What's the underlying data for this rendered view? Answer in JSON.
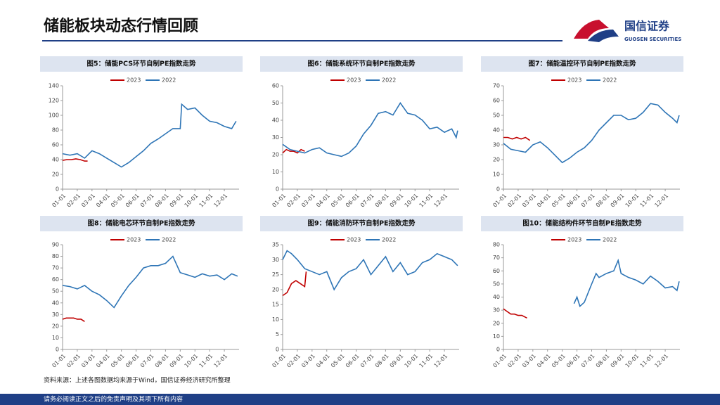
{
  "header": {
    "title": "储能板块动态行情回顾",
    "logo_cn": "国信证券",
    "logo_en": "GUOSEN SECURITIES"
  },
  "source": "资料来源：上述各图数据均来源于Wind，国信证券经济研究所整理",
  "footer": "请务必阅读正文之后的免责声明及其项下所有内容",
  "chart_data": [
    {
      "type": "line",
      "title": "图5：储能PCS环节自制PE指数走势",
      "xlim": [
        0,
        12
      ],
      "xticks": [
        {
          "value": 0,
          "label": "01-01"
        },
        {
          "value": 1,
          "label": "02-01"
        },
        {
          "value": 2,
          "label": "03-01"
        },
        {
          "value": 3,
          "label": "04-01"
        },
        {
          "value": 4,
          "label": "05-01"
        },
        {
          "value": 5,
          "label": "06-01"
        },
        {
          "value": 6,
          "label": "07-01"
        },
        {
          "value": 7,
          "label": "08-01"
        },
        {
          "value": 8,
          "label": "09-01"
        },
        {
          "value": 9,
          "label": "10-01"
        },
        {
          "value": 10,
          "label": "11-01"
        },
        {
          "value": 11,
          "label": "12-01"
        }
      ],
      "ylim": [
        0,
        140
      ],
      "yticks": [
        0,
        20,
        40,
        60,
        80,
        100,
        120,
        140
      ],
      "series": [
        {
          "name": "2023",
          "color": "#c00000",
          "x": [
            0,
            0.3,
            0.6,
            0.9,
            1.2,
            1.5,
            1.7
          ],
          "values": [
            39,
            40,
            40,
            41,
            40,
            38,
            38
          ]
        },
        {
          "name": "2022",
          "color": "#2e75b6",
          "x": [
            0,
            0.5,
            1,
            1.5,
            2,
            2.5,
            3,
            3.5,
            4,
            4.5,
            5,
            5.5,
            6,
            6.5,
            7,
            7.5,
            8,
            8.1,
            8.5,
            9,
            9.5,
            10,
            10.5,
            11,
            11.5,
            11.8
          ],
          "values": [
            48,
            46,
            48,
            42,
            52,
            48,
            42,
            36,
            30,
            36,
            44,
            52,
            62,
            68,
            75,
            82,
            82,
            115,
            108,
            110,
            100,
            92,
            90,
            85,
            82,
            92
          ]
        }
      ]
    },
    {
      "type": "line",
      "title": "图6：储能系统环节自制PE指数走势",
      "xlim": [
        0,
        12
      ],
      "xticks": [
        {
          "value": 0,
          "label": "01-01"
        },
        {
          "value": 1,
          "label": "02-01"
        },
        {
          "value": 2,
          "label": "03-01"
        },
        {
          "value": 3,
          "label": "04-01"
        },
        {
          "value": 4,
          "label": "05-01"
        },
        {
          "value": 5,
          "label": "06-01"
        },
        {
          "value": 6,
          "label": "07-01"
        },
        {
          "value": 7,
          "label": "08-01"
        },
        {
          "value": 8,
          "label": "09-01"
        },
        {
          "value": 9,
          "label": "10-01"
        },
        {
          "value": 10,
          "label": "11-01"
        },
        {
          "value": 11,
          "label": "12-01"
        }
      ],
      "ylim": [
        0,
        60
      ],
      "yticks": [
        0,
        10,
        20,
        30,
        40,
        50,
        60
      ],
      "series": [
        {
          "name": "2023",
          "color": "#c00000",
          "x": [
            0,
            0.25,
            0.5,
            0.75,
            1,
            1.25,
            1.5
          ],
          "values": [
            21,
            23,
            22,
            22,
            21,
            23,
            22
          ]
        },
        {
          "name": "2022",
          "color": "#2e75b6",
          "x": [
            0,
            0.5,
            1,
            1.5,
            2,
            2.5,
            3,
            3.5,
            4,
            4.5,
            5,
            5.5,
            6,
            6.5,
            7,
            7.5,
            8,
            8.5,
            9,
            9.5,
            10,
            10.5,
            11,
            11.5,
            11.8,
            11.9
          ],
          "values": [
            26,
            23,
            22,
            21,
            23,
            24,
            21,
            20,
            19,
            21,
            25,
            32,
            37,
            44,
            45,
            43,
            50,
            44,
            43,
            40,
            35,
            36,
            33,
            35,
            30,
            34
          ]
        }
      ]
    },
    {
      "type": "line",
      "title": "图7：储能温控环节自制PE指数走势",
      "xlim": [
        0,
        12
      ],
      "xticks": [
        {
          "value": 0,
          "label": "01-01"
        },
        {
          "value": 1,
          "label": "02-01"
        },
        {
          "value": 2,
          "label": "03-01"
        },
        {
          "value": 3,
          "label": "04-01"
        },
        {
          "value": 4,
          "label": "05-01"
        },
        {
          "value": 5,
          "label": "06-01"
        },
        {
          "value": 6,
          "label": "07-01"
        },
        {
          "value": 7,
          "label": "08-01"
        },
        {
          "value": 8,
          "label": "09-01"
        },
        {
          "value": 9,
          "label": "10-01"
        },
        {
          "value": 10,
          "label": "11-01"
        },
        {
          "value": 11,
          "label": "12-01"
        }
      ],
      "ylim": [
        0,
        70
      ],
      "yticks": [
        0,
        10,
        20,
        30,
        40,
        50,
        60,
        70
      ],
      "series": [
        {
          "name": "2023",
          "color": "#c00000",
          "x": [
            0,
            0.3,
            0.6,
            0.9,
            1.2,
            1.5,
            1.8
          ],
          "values": [
            35,
            35,
            34,
            35,
            34,
            35,
            33
          ]
        },
        {
          "name": "2022",
          "color": "#2e75b6",
          "x": [
            0,
            0.5,
            1,
            1.5,
            2,
            2.5,
            3,
            3.5,
            4,
            4.5,
            5,
            5.5,
            6,
            6.5,
            7,
            7.5,
            8,
            8.5,
            9,
            9.5,
            10,
            10.5,
            11,
            11.5,
            11.8,
            11.95
          ],
          "values": [
            31,
            27,
            26,
            25,
            30,
            32,
            28,
            23,
            18,
            21,
            25,
            28,
            33,
            40,
            45,
            50,
            50,
            47,
            48,
            52,
            58,
            57,
            52,
            48,
            45,
            50
          ]
        }
      ]
    },
    {
      "type": "line",
      "title": "图8：储能电芯环节自制PE指数走势",
      "xlim": [
        0,
        12
      ],
      "xticks": [
        {
          "value": 0,
          "label": "01-01"
        },
        {
          "value": 1,
          "label": "02-01"
        },
        {
          "value": 2,
          "label": "03-01"
        },
        {
          "value": 3,
          "label": "04-01"
        },
        {
          "value": 4,
          "label": "05-01"
        },
        {
          "value": 5,
          "label": "06-01"
        },
        {
          "value": 6,
          "label": "07-01"
        },
        {
          "value": 7,
          "label": "08-01"
        },
        {
          "value": 8,
          "label": "09-01"
        },
        {
          "value": 9,
          "label": "10-01"
        },
        {
          "value": 10,
          "label": "11-01"
        },
        {
          "value": 11,
          "label": "12-01"
        }
      ],
      "ylim": [
        0,
        90
      ],
      "yticks": [
        0,
        10,
        20,
        30,
        40,
        50,
        60,
        70,
        80,
        90
      ],
      "series": [
        {
          "name": "2023",
          "color": "#c00000",
          "x": [
            0,
            0.25,
            0.5,
            0.75,
            1,
            1.25,
            1.5
          ],
          "values": [
            26,
            27,
            27,
            27,
            26,
            26,
            24
          ]
        },
        {
          "name": "2022",
          "color": "#2e75b6",
          "x": [
            0,
            0.5,
            1,
            1.5,
            2,
            2.5,
            3,
            3.5,
            4,
            4.5,
            5,
            5.5,
            6,
            6.5,
            7,
            7.5,
            8,
            8.5,
            9,
            9.5,
            10,
            10.5,
            11,
            11.5,
            11.9
          ],
          "values": [
            55,
            54,
            52,
            55,
            50,
            47,
            42,
            36,
            46,
            55,
            62,
            70,
            72,
            72,
            74,
            80,
            66,
            64,
            62,
            65,
            63,
            64,
            60,
            65,
            63
          ]
        }
      ]
    },
    {
      "type": "line",
      "title": "图9：储能消防环节自制PE指数走势",
      "xlim": [
        0,
        12
      ],
      "xticks": [
        {
          "value": 0,
          "label": "01-01"
        },
        {
          "value": 1,
          "label": "02-01"
        },
        {
          "value": 2,
          "label": "03-01"
        },
        {
          "value": 3,
          "label": "04-01"
        },
        {
          "value": 4,
          "label": "05-01"
        },
        {
          "value": 5,
          "label": "06-01"
        },
        {
          "value": 6,
          "label": "07-01"
        },
        {
          "value": 7,
          "label": "08-01"
        },
        {
          "value": 8,
          "label": "09-01"
        },
        {
          "value": 9,
          "label": "10-01"
        },
        {
          "value": 10,
          "label": "11-01"
        },
        {
          "value": 11,
          "label": "12-01"
        }
      ],
      "ylim": [
        0,
        35
      ],
      "yticks": [
        0,
        5,
        10,
        15,
        20,
        25,
        30,
        35
      ],
      "series": [
        {
          "name": "2023",
          "color": "#c00000",
          "x": [
            0,
            0.3,
            0.6,
            0.9,
            1.2,
            1.5,
            1.6
          ],
          "values": [
            18,
            19,
            22,
            23,
            22,
            21,
            26
          ]
        },
        {
          "name": "2022",
          "color": "#2e75b6",
          "x": [
            0,
            0.3,
            0.6,
            1,
            1.5,
            2,
            2.5,
            3,
            3.5,
            4,
            4.5,
            5,
            5.5,
            6,
            6.5,
            7,
            7.5,
            8,
            8.5,
            9,
            9.5,
            10,
            10.5,
            11,
            11.5,
            11.9
          ],
          "values": [
            30,
            33,
            32,
            30,
            27,
            26,
            25,
            26,
            20,
            24,
            26,
            27,
            30,
            25,
            28,
            31,
            26,
            29,
            25,
            26,
            29,
            30,
            32,
            31,
            30,
            28
          ]
        }
      ]
    },
    {
      "type": "line",
      "title": "图10：储能结构件环节自制PE指数走势",
      "xlim": [
        0,
        12
      ],
      "xticks": [
        {
          "value": 0,
          "label": "01-01"
        },
        {
          "value": 1,
          "label": "02-01"
        },
        {
          "value": 2,
          "label": "03-01"
        },
        {
          "value": 3,
          "label": "04-01"
        },
        {
          "value": 4,
          "label": "05-01"
        },
        {
          "value": 5,
          "label": "06-01"
        },
        {
          "value": 6,
          "label": "07-01"
        },
        {
          "value": 7,
          "label": "08-01"
        },
        {
          "value": 8,
          "label": "09-01"
        },
        {
          "value": 9,
          "label": "10-01"
        },
        {
          "value": 10,
          "label": "11-01"
        },
        {
          "value": 11,
          "label": "12-01"
        }
      ],
      "ylim": [
        0,
        80
      ],
      "yticks": [
        0,
        10,
        20,
        30,
        40,
        50,
        60,
        70,
        80
      ],
      "series": [
        {
          "name": "2023",
          "color": "#c00000",
          "x": [
            0,
            0.25,
            0.5,
            0.75,
            1,
            1.25,
            1.6
          ],
          "values": [
            31,
            29,
            27,
            27,
            26,
            26,
            24
          ]
        },
        {
          "name": "2022",
          "color": "#2e75b6",
          "x": [
            4.8,
            5,
            5.2,
            5.5,
            6,
            6.3,
            6.5,
            7,
            7.5,
            7.8,
            8,
            8.5,
            9,
            9.5,
            10,
            10.5,
            11,
            11.5,
            11.8,
            11.95
          ],
          "values": [
            35,
            40,
            33,
            36,
            50,
            58,
            55,
            58,
            60,
            68,
            58,
            55,
            53,
            50,
            56,
            52,
            47,
            48,
            45,
            52
          ]
        }
      ]
    }
  ]
}
